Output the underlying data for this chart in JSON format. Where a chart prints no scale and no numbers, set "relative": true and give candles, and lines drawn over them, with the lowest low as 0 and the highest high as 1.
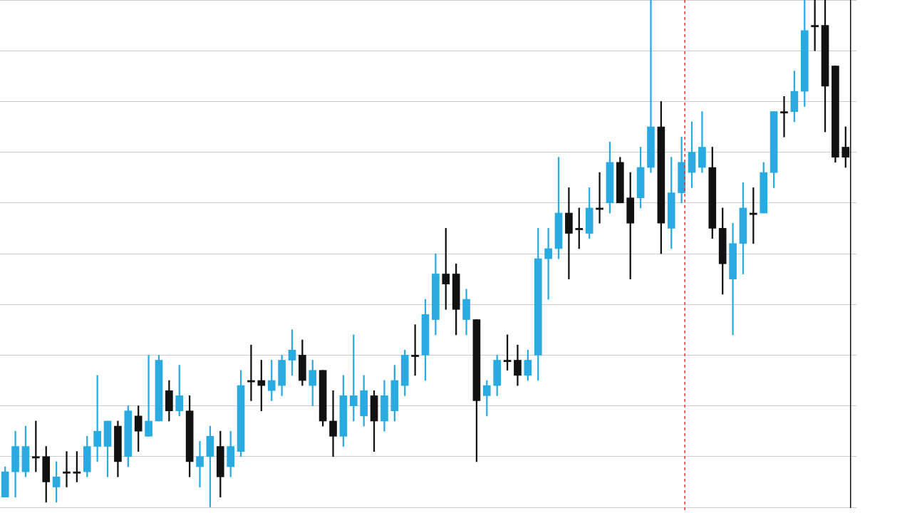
{
  "chart_data": {
    "type": "candlestick",
    "relative": true,
    "grid": "y",
    "legend": false,
    "categories": [
      null,
      null,
      null,
      null,
      null,
      null,
      null,
      null,
      null,
      null,
      null,
      null,
      null,
      null,
      null,
      null,
      null,
      null,
      null,
      null,
      null,
      null,
      null,
      null,
      null,
      null,
      null,
      null,
      null,
      null,
      null,
      null,
      null,
      null,
      null,
      null,
      null,
      null,
      null,
      null,
      null,
      null,
      null,
      null,
      null,
      null,
      null,
      null,
      null,
      null,
      null,
      null,
      null,
      null,
      null,
      null,
      null,
      null,
      null,
      null,
      null,
      null,
      null,
      null,
      null,
      null,
      null,
      null,
      null,
      null,
      null,
      null,
      null,
      null,
      null,
      null,
      null,
      null,
      null,
      null,
      null,
      null,
      null
    ],
    "ohlc": [
      [
        0.02,
        0.08,
        0.02,
        0.07
      ],
      [
        0.07,
        0.15,
        0.02,
        0.12
      ],
      [
        0.07,
        0.16,
        0.06,
        0.12
      ],
      [
        0.1,
        0.17,
        0.07,
        0.097
      ],
      [
        0.1,
        0.12,
        0.01,
        0.05
      ],
      [
        0.04,
        0.09,
        0.01,
        0.06
      ],
      [
        0.07,
        0.11,
        0.04,
        0.067
      ],
      [
        0.07,
        0.11,
        0.05,
        0.067
      ],
      [
        0.07,
        0.14,
        0.06,
        0.12
      ],
      [
        0.12,
        0.26,
        0.09,
        0.15
      ],
      [
        0.12,
        0.17,
        0.06,
        0.17
      ],
      [
        0.16,
        0.17,
        0.06,
        0.09
      ],
      [
        0.1,
        0.2,
        0.08,
        0.19
      ],
      [
        0.18,
        0.2,
        0.11,
        0.15
      ],
      [
        0.14,
        0.3,
        0.14,
        0.17
      ],
      [
        0.17,
        0.3,
        0.17,
        0.29
      ],
      [
        0.23,
        0.25,
        0.17,
        0.19
      ],
      [
        0.19,
        0.28,
        0.18,
        0.22
      ],
      [
        0.19,
        0.22,
        0.06,
        0.09
      ],
      [
        0.08,
        0.13,
        0.04,
        0.1
      ],
      [
        0.1,
        0.16,
        0,
        0.14
      ],
      [
        0.12,
        0.15,
        0.02,
        0.06
      ],
      [
        0.08,
        0.15,
        0.06,
        0.12
      ],
      [
        0.11,
        0.27,
        0.1,
        0.24
      ],
      [
        0.25,
        0.32,
        0.21,
        0.247
      ],
      [
        0.25,
        0.29,
        0.19,
        0.24
      ],
      [
        0.23,
        0.29,
        0.21,
        0.25
      ],
      [
        0.24,
        0.3,
        0.22,
        0.29
      ],
      [
        0.29,
        0.35,
        0.26,
        0.31
      ],
      [
        0.3,
        0.33,
        0.24,
        0.25
      ],
      [
        0.24,
        0.29,
        0.2,
        0.27
      ],
      [
        0.27,
        0.27,
        0.16,
        0.17
      ],
      [
        0.17,
        0.23,
        0.1,
        0.14
      ],
      [
        0.14,
        0.26,
        0.12,
        0.22
      ],
      [
        0.2,
        0.34,
        0.17,
        0.22
      ],
      [
        0.18,
        0.26,
        0.16,
        0.23
      ],
      [
        0.22,
        0.23,
        0.11,
        0.17
      ],
      [
        0.17,
        0.25,
        0.15,
        0.22
      ],
      [
        0.19,
        0.28,
        0.17,
        0.25
      ],
      [
        0.24,
        0.31,
        0.22,
        0.3
      ],
      [
        0.3,
        0.36,
        0.26,
        0.297
      ],
      [
        0.3,
        0.41,
        0.25,
        0.38
      ],
      [
        0.37,
        0.5,
        0.34,
        0.46
      ],
      [
        0.46,
        0.55,
        0.39,
        0.44
      ],
      [
        0.46,
        0.48,
        0.34,
        0.39
      ],
      [
        0.37,
        0.43,
        0.34,
        0.41
      ],
      [
        0.37,
        0.37,
        0.09,
        0.21
      ],
      [
        0.22,
        0.25,
        0.18,
        0.24
      ],
      [
        0.24,
        0.3,
        0.22,
        0.29
      ],
      [
        0.29,
        0.34,
        0.27,
        0.287
      ],
      [
        0.29,
        0.32,
        0.24,
        0.26
      ],
      [
        0.26,
        0.31,
        0.25,
        0.29
      ],
      [
        0.3,
        0.55,
        0.25,
        0.49
      ],
      [
        0.49,
        0.55,
        0.41,
        0.51
      ],
      [
        0.51,
        0.69,
        0.49,
        0.58
      ],
      [
        0.58,
        0.63,
        0.45,
        0.54
      ],
      [
        0.55,
        0.59,
        0.51,
        0.547
      ],
      [
        0.54,
        0.63,
        0.53,
        0.59
      ],
      [
        0.59,
        0.66,
        0.56,
        0.587
      ],
      [
        0.6,
        0.72,
        0.58,
        0.68
      ],
      [
        0.68,
        0.69,
        0.6,
        0.6
      ],
      [
        0.61,
        0.66,
        0.45,
        0.56
      ],
      [
        0.61,
        0.71,
        0.59,
        0.67
      ],
      [
        0.67,
        1,
        0.66,
        0.75
      ],
      [
        0.75,
        0.8,
        0.5,
        0.56
      ],
      [
        0.55,
        0.69,
        0.51,
        0.62
      ],
      [
        0.62,
        0.73,
        0.6,
        0.68
      ],
      [
        0.66,
        0.76,
        0.63,
        0.7
      ],
      [
        0.67,
        0.78,
        0.66,
        0.71
      ],
      [
        0.67,
        0.71,
        0.53,
        0.55
      ],
      [
        0.55,
        0.59,
        0.42,
        0.48
      ],
      [
        0.45,
        0.56,
        0.34,
        0.52
      ],
      [
        0.52,
        0.64,
        0.46,
        0.59
      ],
      [
        0.58,
        0.63,
        0.52,
        0.577
      ],
      [
        0.58,
        0.68,
        0.58,
        0.66
      ],
      [
        0.66,
        0.78,
        0.63,
        0.78
      ],
      [
        0.78,
        0.81,
        0.73,
        0.777
      ],
      [
        0.78,
        0.86,
        0.76,
        0.82
      ],
      [
        0.82,
        1,
        0.79,
        0.94
      ],
      [
        0.95,
        1,
        0.9,
        0.947
      ],
      [
        0.95,
        1,
        0.74,
        0.83
      ],
      [
        0.87,
        0.87,
        0.68,
        0.69
      ],
      [
        0.71,
        0.75,
        0.67,
        0.69
      ]
    ],
    "colors": [
      "#29abe2",
      "#29abe2",
      "#29abe2",
      "#111111",
      "#111111",
      "#29abe2",
      "#111111",
      "#111111",
      "#29abe2",
      "#29abe2",
      "#29abe2",
      "#111111",
      "#29abe2",
      "#111111",
      "#29abe2",
      "#29abe2",
      "#111111",
      "#29abe2",
      "#111111",
      "#29abe2",
      "#29abe2",
      "#111111",
      "#29abe2",
      "#29abe2",
      "#111111",
      "#111111",
      "#29abe2",
      "#29abe2",
      "#29abe2",
      "#111111",
      "#29abe2",
      "#111111",
      "#111111",
      "#29abe2",
      "#29abe2",
      "#29abe2",
      "#111111",
      "#29abe2",
      "#29abe2",
      "#29abe2",
      "#111111",
      "#29abe2",
      "#29abe2",
      "#111111",
      "#111111",
      "#29abe2",
      "#111111",
      "#29abe2",
      "#29abe2",
      "#111111",
      "#111111",
      "#29abe2",
      "#29abe2",
      "#29abe2",
      "#29abe2",
      "#111111",
      "#111111",
      "#29abe2",
      "#111111",
      "#29abe2",
      "#111111",
      "#111111",
      "#29abe2",
      "#29abe2",
      "#111111",
      "#29abe2",
      "#29abe2",
      "#29abe2",
      "#29abe2",
      "#111111",
      "#111111",
      "#29abe2",
      "#29abe2",
      "#111111",
      "#29abe2",
      "#29abe2",
      "#111111",
      "#29abe2",
      "#29abe2",
      "#111111",
      "#111111",
      "#111111",
      "#111111"
    ]
  }
}
